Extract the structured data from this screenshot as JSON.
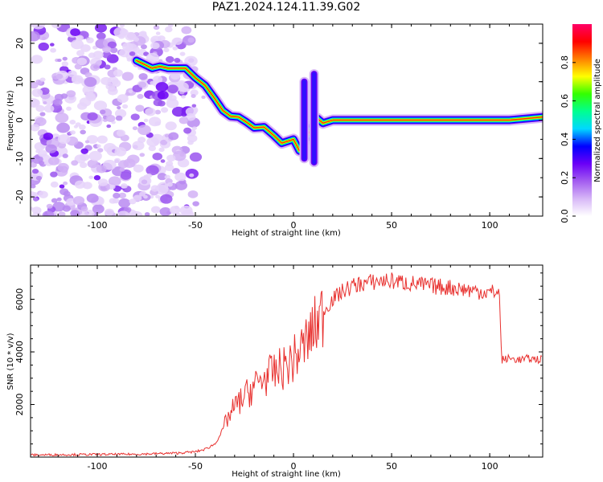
{
  "title": "PAZ1.2024.124.11.39.G02",
  "chart_data": [
    {
      "type": "heatmap",
      "title": "PAZ1.2024.124.11.39.G02",
      "xlabel": "Height of straight line (km)",
      "ylabel": "Frequency (Hz)",
      "xlim": [
        -134,
        127
      ],
      "ylim": [
        -25,
        25
      ],
      "xticks": [
        -100,
        -50,
        0,
        50,
        100
      ],
      "yticks": [
        -20,
        -10,
        0,
        10,
        20
      ],
      "colorbar": {
        "label": "Normalized spectral amplitude",
        "range": [
          0,
          1
        ],
        "ticks": [
          "0.0",
          "0.2",
          "0.4",
          "0.6",
          "0.8"
        ],
        "colors": [
          "#ffffff",
          "#d7b7f7",
          "#a35cf0",
          "#6a00f7",
          "#0000ff",
          "#00d8ff",
          "#00ff90",
          "#33ff00",
          "#ffff00",
          "#ff8000",
          "#ff0000",
          "#ff0066"
        ]
      },
      "noise_region_x": [
        -134,
        -50
      ],
      "ridge": [
        {
          "x": -80,
          "y": 15.5
        },
        {
          "x": -76,
          "y": 14.5
        },
        {
          "x": -72,
          "y": 13.5
        },
        {
          "x": -68,
          "y": 14
        },
        {
          "x": -64,
          "y": 13.5
        },
        {
          "x": -60,
          "y": 13.5
        },
        {
          "x": -55,
          "y": 13.5
        },
        {
          "x": -50,
          "y": 11
        },
        {
          "x": -45,
          "y": 9
        },
        {
          "x": -40,
          "y": 5.5
        },
        {
          "x": -36,
          "y": 2.5
        },
        {
          "x": -32,
          "y": 1
        },
        {
          "x": -28,
          "y": 0.8
        },
        {
          "x": -24,
          "y": -0.5
        },
        {
          "x": -20,
          "y": -2
        },
        {
          "x": -15,
          "y": -1.8
        },
        {
          "x": -10,
          "y": -4
        },
        {
          "x": -6,
          "y": -6
        },
        {
          "x": -3,
          "y": -5.5
        },
        {
          "x": 0,
          "y": -5
        },
        {
          "x": 3,
          "y": -8
        },
        {
          "x": 12,
          "y": 0.5
        },
        {
          "x": 15,
          "y": -0.8
        },
        {
          "x": 20,
          "y": 0
        },
        {
          "x": 30,
          "y": 0
        },
        {
          "x": 60,
          "y": 0
        },
        {
          "x": 90,
          "y": 0
        },
        {
          "x": 110,
          "y": 0
        },
        {
          "x": 127,
          "y": 0.8
        }
      ],
      "vertical_streaks": [
        {
          "x": 5.5,
          "y_range": [
            -10,
            10
          ]
        },
        {
          "x": 10.5,
          "y_range": [
            -11,
            12
          ]
        }
      ]
    },
    {
      "type": "line",
      "xlabel": "Height of straight line (km)",
      "ylabel": "SNR (10 * v/v)",
      "xlim": [
        -134,
        127
      ],
      "ylim": [
        0,
        7300
      ],
      "xticks": [
        -100,
        -50,
        0,
        50,
        100
      ],
      "yticks": [
        2000,
        4000,
        6000
      ],
      "color": "#e8312f",
      "series": [
        {
          "x": [
            -134,
            -120,
            -100,
            -80,
            -60,
            -50,
            -45,
            -40,
            -37,
            -34,
            -30,
            -25,
            -20,
            -15,
            -10,
            -5,
            0,
            5,
            10,
            15,
            20,
            25,
            30,
            35,
            40,
            45,
            50,
            55,
            60,
            70,
            80,
            90,
            100,
            103,
            105,
            106,
            110,
            115,
            120,
            127
          ],
          "y": [
            80,
            90,
            100,
            110,
            150,
            200,
            300,
            500,
            900,
            1400,
            1900,
            2300,
            2700,
            3000,
            3200,
            3400,
            3700,
            4200,
            4800,
            5500,
            6000,
            6300,
            6500,
            6600,
            6650,
            6700,
            6700,
            6650,
            6600,
            6500,
            6450,
            6350,
            6250,
            6300,
            6200,
            3700,
            3750,
            3700,
            3750,
            3700
          ]
        }
      ]
    }
  ]
}
